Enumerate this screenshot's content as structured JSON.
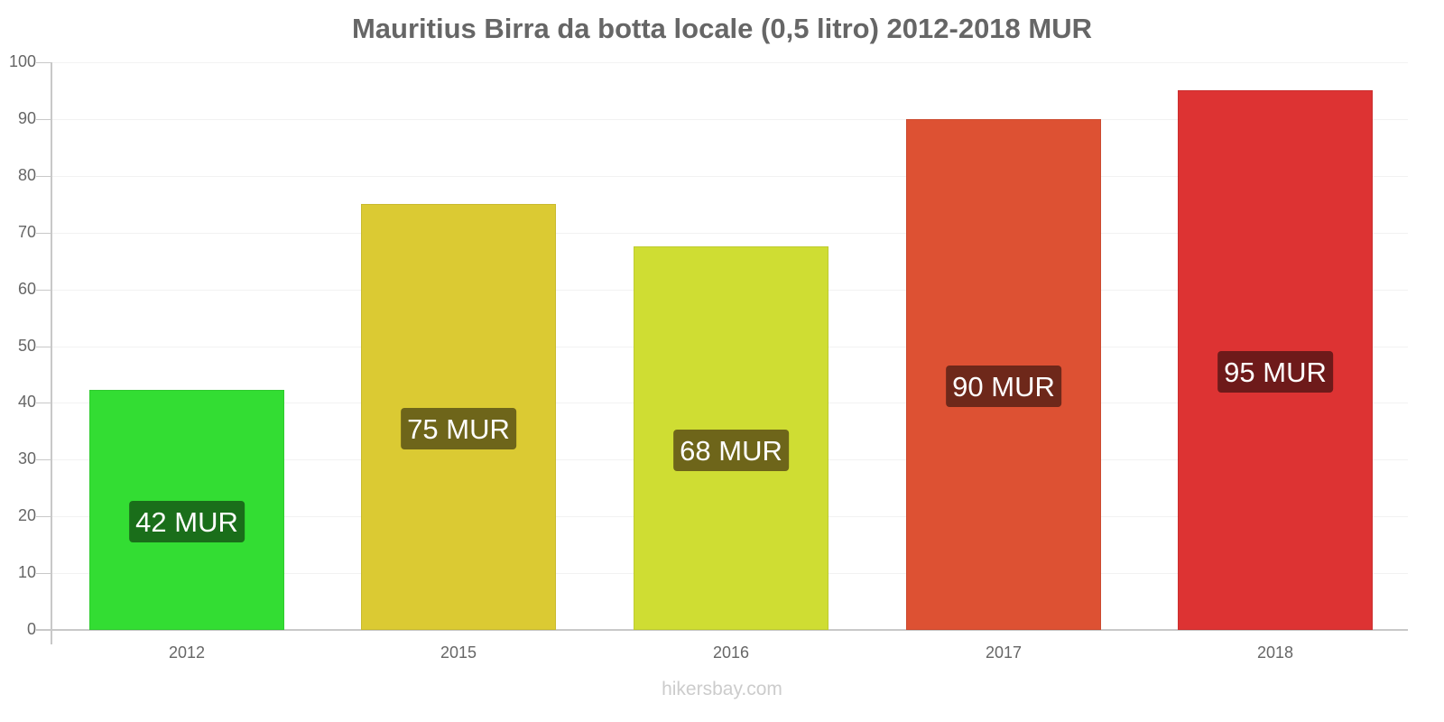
{
  "chart_data": {
    "type": "bar",
    "title": "Mauritius Birra da botta locale (0,5 litro) 2012-2018 MUR",
    "xlabel": "",
    "ylabel": "",
    "categories": [
      "2012",
      "2015",
      "2016",
      "2017",
      "2018"
    ],
    "values": [
      42.3,
      75,
      67.5,
      90,
      95
    ],
    "data_labels": [
      "42 MUR",
      "75 MUR",
      "68 MUR",
      "90 MUR",
      "95 MUR"
    ],
    "bar_colors": [
      "#33dd33",
      "#dbca33",
      "#cfdd33",
      "#dd5133",
      "#dd3333"
    ],
    "label_bg_colors": [
      "#1a6e1a",
      "#6e651a",
      "#6e651a",
      "#6e281a",
      "#6e1a1a"
    ],
    "ylim": [
      0,
      100
    ],
    "yticks": [
      0,
      10,
      20,
      30,
      40,
      50,
      60,
      70,
      80,
      90,
      100
    ],
    "grid": true,
    "legend": "none",
    "source": "hikersbay.com"
  },
  "labels": {
    "title": "Mauritius Birra da botta locale (0,5 litro) 2012-2018 MUR",
    "yticks": [
      "0",
      "10",
      "20",
      "30",
      "40",
      "50",
      "60",
      "70",
      "80",
      "90",
      "100"
    ],
    "watermark": "hikersbay.com"
  }
}
